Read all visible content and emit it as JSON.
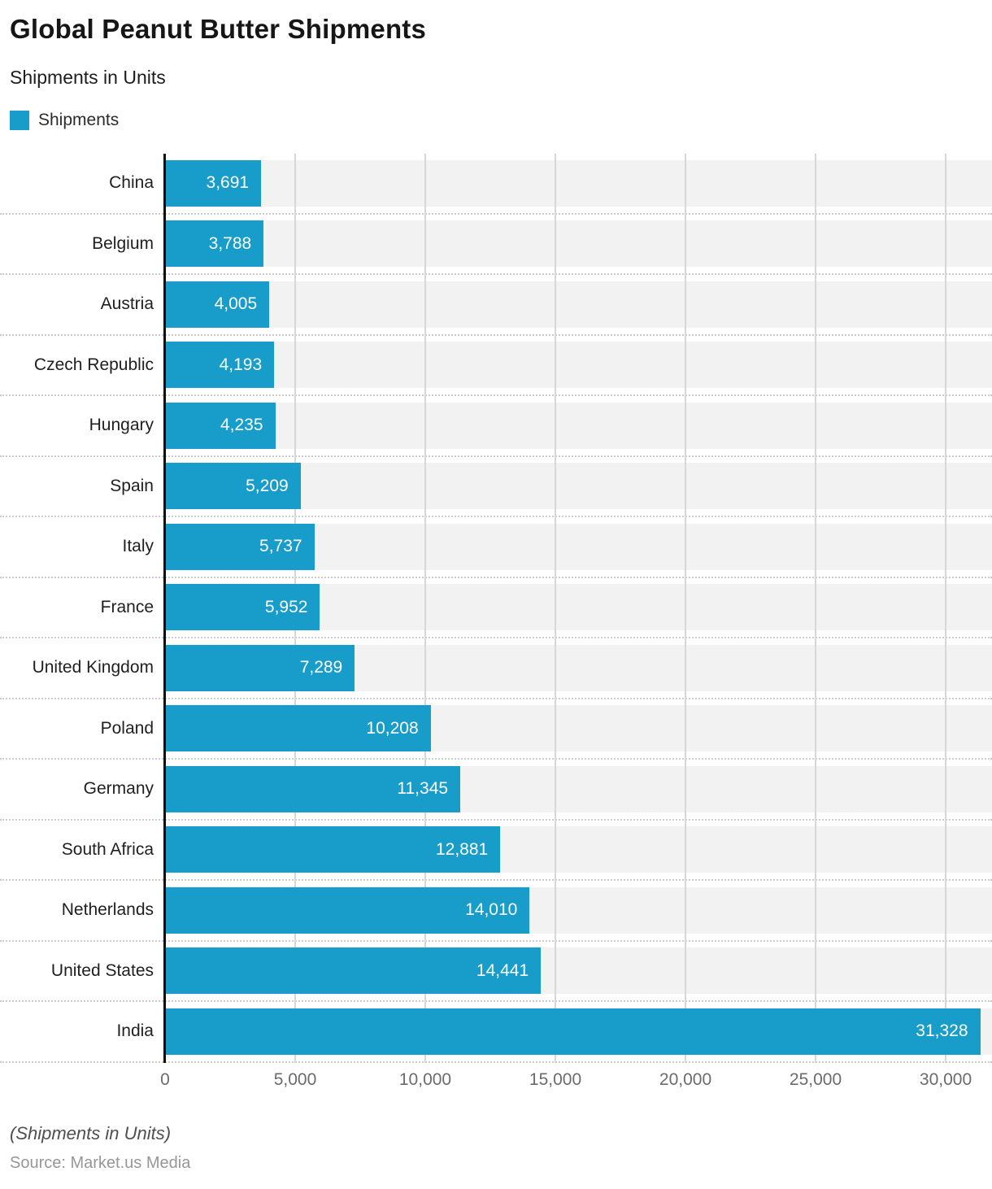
{
  "header": {
    "title": "Global Peanut Butter Shipments",
    "subtitle": "Shipments in Units",
    "legend": {
      "label": "Shipments",
      "swatch_color": "#189dcb"
    }
  },
  "chart_data": {
    "type": "bar",
    "orientation": "horizontal",
    "title": "Global Peanut Butter Shipments",
    "subtitle": "Shipments in Units",
    "legend_entries": [
      "Shipments"
    ],
    "legend_position": "top-left",
    "categories": [
      "China",
      "Belgium",
      "Austria",
      "Czech Republic",
      "Hungary",
      "Spain",
      "Italy",
      "France",
      "United Kingdom",
      "Poland",
      "Germany",
      "South Africa",
      "Netherlands",
      "United States",
      "India"
    ],
    "series": [
      {
        "name": "Shipments",
        "values": [
          3691,
          3788,
          4005,
          4193,
          4235,
          5209,
          5737,
          5952,
          7289,
          10208,
          11345,
          12881,
          14010,
          14441,
          31328
        ]
      }
    ],
    "value_labels": [
      "3,691",
      "3,788",
      "4,005",
      "4,193",
      "4,235",
      "5,209",
      "5,737",
      "5,952",
      "7,289",
      "10,208",
      "11,345",
      "12,881",
      "14,010",
      "14,441",
      "31,328"
    ],
    "xlabel": "",
    "ylabel": "",
    "xlim": [
      0,
      31780
    ],
    "xticks": {
      "values": [
        0,
        5000,
        10000,
        15000,
        20000,
        25000,
        30000
      ],
      "labels": [
        "0",
        "5,000",
        "10,000",
        "15,000",
        "20,000",
        "25,000",
        "30,000"
      ]
    },
    "grid": true,
    "bar_color": "#189dcb",
    "row_band_color": "#f2f2f2",
    "value_label_color": "#ffffff"
  },
  "footer": {
    "note": "(Shipments in Units)",
    "source": "Source: Market.us Media"
  }
}
